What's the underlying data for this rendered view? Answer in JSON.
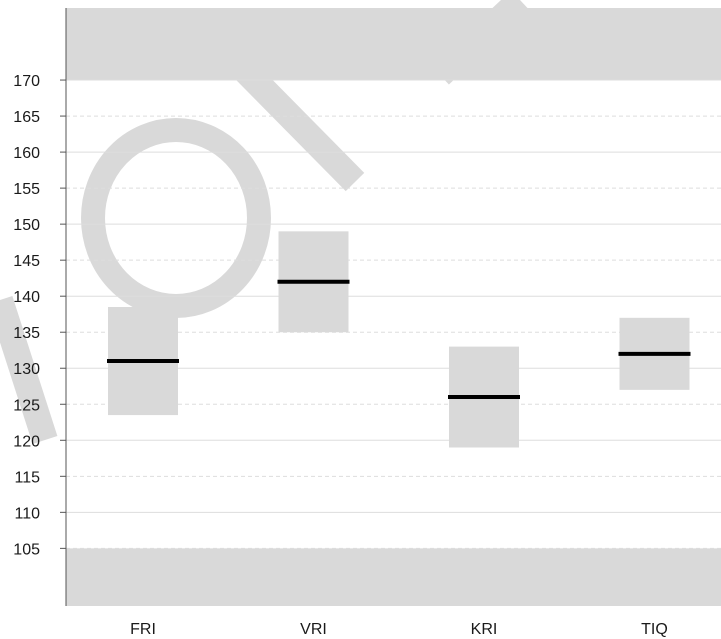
{
  "chart_data": {
    "type": "box",
    "categories": [
      "FRI",
      "VRI",
      "KRI",
      "TIQ"
    ],
    "series": [
      {
        "medians": [
          131,
          142,
          126,
          132
        ],
        "box_low": [
          123.5,
          135,
          119,
          127
        ],
        "box_high": [
          138.5,
          149,
          133,
          137
        ]
      }
    ],
    "ylim": [
      97,
      180
    ],
    "yticks": [
      105,
      110,
      115,
      120,
      125,
      130,
      135,
      140,
      145,
      150,
      155,
      160,
      165,
      170
    ],
    "title": "",
    "xlabel": "",
    "ylabel": "",
    "grid": true,
    "shaded_bands": [
      {
        "from": 170,
        "to": 180
      },
      {
        "from": 97,
        "to": 105
      }
    ],
    "colors": {
      "box": "#d9d9d9",
      "median": "#000000",
      "band": "#d9d9d9",
      "gridline": "#dddddd",
      "axis": "#555555",
      "watermark": "#d9d9d9"
    }
  }
}
